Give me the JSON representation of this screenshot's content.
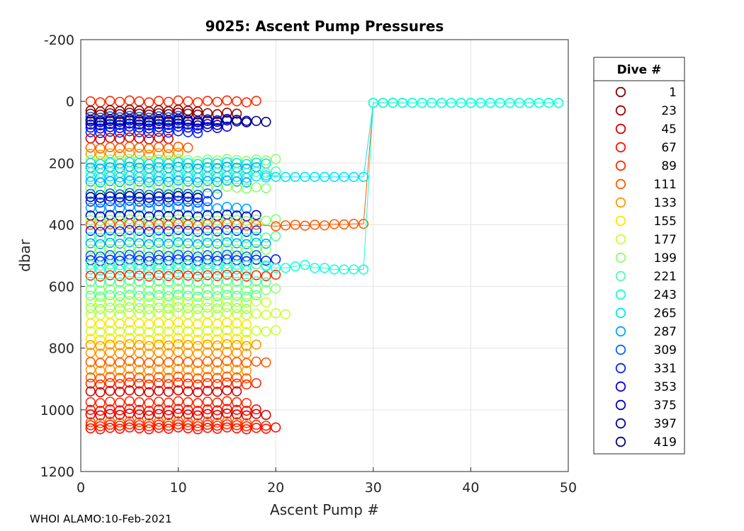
{
  "chart_data": {
    "type": "scatter",
    "title": "9025: Ascent Pump Pressures",
    "xlabel": "Ascent Pump #",
    "ylabel": "dbar",
    "xlim": [
      0,
      50
    ],
    "ylim": [
      -200,
      1200
    ],
    "y_reversed": true,
    "xticks": [
      "0",
      "10",
      "20",
      "30",
      "40",
      "50"
    ],
    "yticks": [
      "-200",
      "0",
      "200",
      "400",
      "600",
      "800",
      "1000",
      "1200"
    ],
    "grid": true,
    "marker": "open-circle",
    "legend": {
      "title": "Dive #",
      "placement": "outside-right",
      "entries": [
        {
          "label": "1",
          "color": "#800000"
        },
        {
          "label": "23",
          "color": "#9a0000"
        },
        {
          "label": "45",
          "color": "#d20000"
        },
        {
          "label": "67",
          "color": "#ff0d00"
        },
        {
          "label": "89",
          "color": "#ff2a00"
        },
        {
          "label": "111",
          "color": "#ff5a00"
        },
        {
          "label": "133",
          "color": "#ff9a00"
        },
        {
          "label": "155",
          "color": "#ffe600"
        },
        {
          "label": "177",
          "color": "#c8ff2e"
        },
        {
          "label": "199",
          "color": "#8cff6a"
        },
        {
          "label": "221",
          "color": "#4dffaa"
        },
        {
          "label": "243",
          "color": "#1affd8"
        },
        {
          "label": "265",
          "color": "#00e5ff"
        },
        {
          "label": "287",
          "color": "#00a6ff"
        },
        {
          "label": "309",
          "color": "#0066ff"
        },
        {
          "label": "331",
          "color": "#0026ff"
        },
        {
          "label": "353",
          "color": "#0000e6"
        },
        {
          "label": "375",
          "color": "#0000c4"
        },
        {
          "label": "397",
          "color": "#00009c"
        },
        {
          "label": "419",
          "color": "#000080"
        }
      ]
    },
    "bands": [
      {
        "pressure": 0,
        "max_pump": 18,
        "color": "#ff2a00"
      },
      {
        "pressure": 30,
        "max_pump": 12,
        "color": "#800000"
      },
      {
        "pressure": 40,
        "max_pump": 16,
        "color": "#9a0000"
      },
      {
        "pressure": 50,
        "max_pump": 10,
        "color": "#0066ff"
      },
      {
        "pressure": 60,
        "max_pump": 17,
        "color": "#0000c4"
      },
      {
        "pressure": 65,
        "max_pump": 19,
        "color": "#000080"
      },
      {
        "pressure": 75,
        "max_pump": 14,
        "color": "#00009c"
      },
      {
        "pressure": 85,
        "max_pump": 15,
        "color": "#0000e6"
      },
      {
        "pressure": 100,
        "max_pump": 12,
        "color": "#0026ff"
      },
      {
        "pressure": 120,
        "max_pump": 9,
        "color": "#d20000"
      },
      {
        "pressure": 150,
        "max_pump": 11,
        "color": "#ff5a00"
      },
      {
        "pressure": 170,
        "max_pump": 10,
        "color": "#ff9a00"
      },
      {
        "pressure": 190,
        "max_pump": 20,
        "color": "#8cff6a"
      },
      {
        "pressure": 200,
        "max_pump": 19,
        "color": "#00e5ff"
      },
      {
        "pressure": 215,
        "max_pump": 18,
        "color": "#00a6ff"
      },
      {
        "pressure": 230,
        "max_pump": 20,
        "color": "#4dffaa"
      },
      {
        "pressure": 245,
        "max_pump": 19,
        "color": "#00e5ff"
      },
      {
        "pressure": 260,
        "max_pump": 17,
        "color": "#00a6ff"
      },
      {
        "pressure": 280,
        "max_pump": 19,
        "color": "#8cff6a"
      },
      {
        "pressure": 300,
        "max_pump": 14,
        "color": "#0066ff"
      },
      {
        "pressure": 310,
        "max_pump": 12,
        "color": "#000080"
      },
      {
        "pressure": 325,
        "max_pump": 13,
        "color": "#0026ff"
      },
      {
        "pressure": 345,
        "max_pump": 17,
        "color": "#00a6ff"
      },
      {
        "pressure": 370,
        "max_pump": 18,
        "color": "#0000c4"
      },
      {
        "pressure": 385,
        "max_pump": 20,
        "color": "#8cff6a"
      },
      {
        "pressure": 400,
        "max_pump": 17,
        "color": "#ff5a00"
      },
      {
        "pressure": 420,
        "max_pump": 18,
        "color": "#0026ff"
      },
      {
        "pressure": 440,
        "max_pump": 20,
        "color": "#4dffaa"
      },
      {
        "pressure": 460,
        "max_pump": 19,
        "color": "#00a6ff"
      },
      {
        "pressure": 480,
        "max_pump": 19,
        "color": "#8cff6a"
      },
      {
        "pressure": 500,
        "max_pump": 18,
        "color": "#0066ff"
      },
      {
        "pressure": 515,
        "max_pump": 20,
        "color": "#0026ff"
      },
      {
        "pressure": 530,
        "max_pump": 19,
        "color": "#4dffaa"
      },
      {
        "pressure": 545,
        "max_pump": 17,
        "color": "#1affd8"
      },
      {
        "pressure": 565,
        "max_pump": 20,
        "color": "#ff2a00"
      },
      {
        "pressure": 585,
        "max_pump": 19,
        "color": "#4dffaa"
      },
      {
        "pressure": 610,
        "max_pump": 20,
        "color": "#8cff6a"
      },
      {
        "pressure": 630,
        "max_pump": 18,
        "color": "#4dffaa"
      },
      {
        "pressure": 650,
        "max_pump": 19,
        "color": "#c8ff2e"
      },
      {
        "pressure": 670,
        "max_pump": 17,
        "color": "#8cff6a"
      },
      {
        "pressure": 690,
        "max_pump": 21,
        "color": "#c8ff2e"
      },
      {
        "pressure": 720,
        "max_pump": 17,
        "color": "#ffe600"
      },
      {
        "pressure": 745,
        "max_pump": 20,
        "color": "#c8ff2e"
      },
      {
        "pressure": 770,
        "max_pump": 17,
        "color": "#ffe600"
      },
      {
        "pressure": 790,
        "max_pump": 18,
        "color": "#ff9a00"
      },
      {
        "pressure": 815,
        "max_pump": 17,
        "color": "#ff9a00"
      },
      {
        "pressure": 845,
        "max_pump": 19,
        "color": "#ff5a00"
      },
      {
        "pressure": 870,
        "max_pump": 17,
        "color": "#ff9a00"
      },
      {
        "pressure": 895,
        "max_pump": 17,
        "color": "#ff5a00"
      },
      {
        "pressure": 915,
        "max_pump": 18,
        "color": "#ff2a00"
      },
      {
        "pressure": 940,
        "max_pump": 16,
        "color": "#d20000"
      },
      {
        "pressure": 975,
        "max_pump": 17,
        "color": "#ff2a00"
      },
      {
        "pressure": 1000,
        "max_pump": 18,
        "color": "#ff0d00"
      },
      {
        "pressure": 1015,
        "max_pump": 19,
        "color": "#d20000"
      },
      {
        "pressure": 1040,
        "max_pump": 17,
        "color": "#ff5a00"
      },
      {
        "pressure": 1050,
        "max_pump": 19,
        "color": "#ff2a00"
      },
      {
        "pressure": 1060,
        "max_pump": 20,
        "color": "#ff0d00"
      }
    ],
    "extended_series": [
      {
        "color": "#ff5a00",
        "points": [
          [
            18,
            400
          ],
          [
            20,
            405
          ],
          [
            21,
            402
          ],
          [
            22,
            400
          ],
          [
            23,
            403
          ],
          [
            24,
            400
          ],
          [
            25,
            402
          ],
          [
            26,
            398
          ],
          [
            27,
            399
          ],
          [
            28,
            397
          ],
          [
            29,
            397
          ],
          [
            30,
            5
          ],
          [
            31,
            5
          ],
          [
            32,
            5
          ],
          [
            33,
            5
          ]
        ]
      },
      {
        "color": "#00e5ff",
        "points": [
          [
            19,
            240
          ],
          [
            20,
            245
          ],
          [
            21,
            245
          ],
          [
            22,
            245
          ],
          [
            23,
            245
          ],
          [
            24,
            245
          ],
          [
            25,
            245
          ],
          [
            26,
            245
          ],
          [
            27,
            245
          ],
          [
            28,
            245
          ],
          [
            29,
            245
          ],
          [
            30,
            5
          ],
          [
            31,
            5
          ],
          [
            32,
            5
          ],
          [
            33,
            5
          ],
          [
            34,
            5
          ],
          [
            35,
            5
          ],
          [
            36,
            5
          ],
          [
            37,
            5
          ],
          [
            38,
            5
          ],
          [
            39,
            5
          ],
          [
            40,
            5
          ],
          [
            41,
            5
          ],
          [
            42,
            5
          ],
          [
            43,
            5
          ],
          [
            44,
            5
          ],
          [
            45,
            5
          ],
          [
            46,
            5
          ],
          [
            47,
            5
          ],
          [
            48,
            5
          ],
          [
            49,
            5
          ]
        ]
      },
      {
        "color": "#1affd8",
        "points": [
          [
            19,
            535
          ],
          [
            20,
            540
          ],
          [
            21,
            540
          ],
          [
            22,
            535
          ],
          [
            23,
            530
          ],
          [
            24,
            540
          ],
          [
            25,
            540
          ],
          [
            26,
            545
          ],
          [
            27,
            545
          ],
          [
            28,
            545
          ],
          [
            29,
            545
          ],
          [
            30,
            5
          ],
          [
            31,
            5
          ],
          [
            32,
            5
          ],
          [
            33,
            5
          ],
          [
            34,
            5
          ],
          [
            35,
            5
          ],
          [
            36,
            5
          ],
          [
            37,
            5
          ],
          [
            38,
            5
          ],
          [
            39,
            5
          ],
          [
            40,
            5
          ],
          [
            41,
            5
          ],
          [
            42,
            5
          ],
          [
            43,
            5
          ],
          [
            44,
            5
          ],
          [
            45,
            5
          ],
          [
            46,
            5
          ],
          [
            47,
            5
          ],
          [
            48,
            5
          ],
          [
            49,
            5
          ]
        ]
      }
    ]
  },
  "footer": "WHOI ALAMO:10-Feb-2021"
}
